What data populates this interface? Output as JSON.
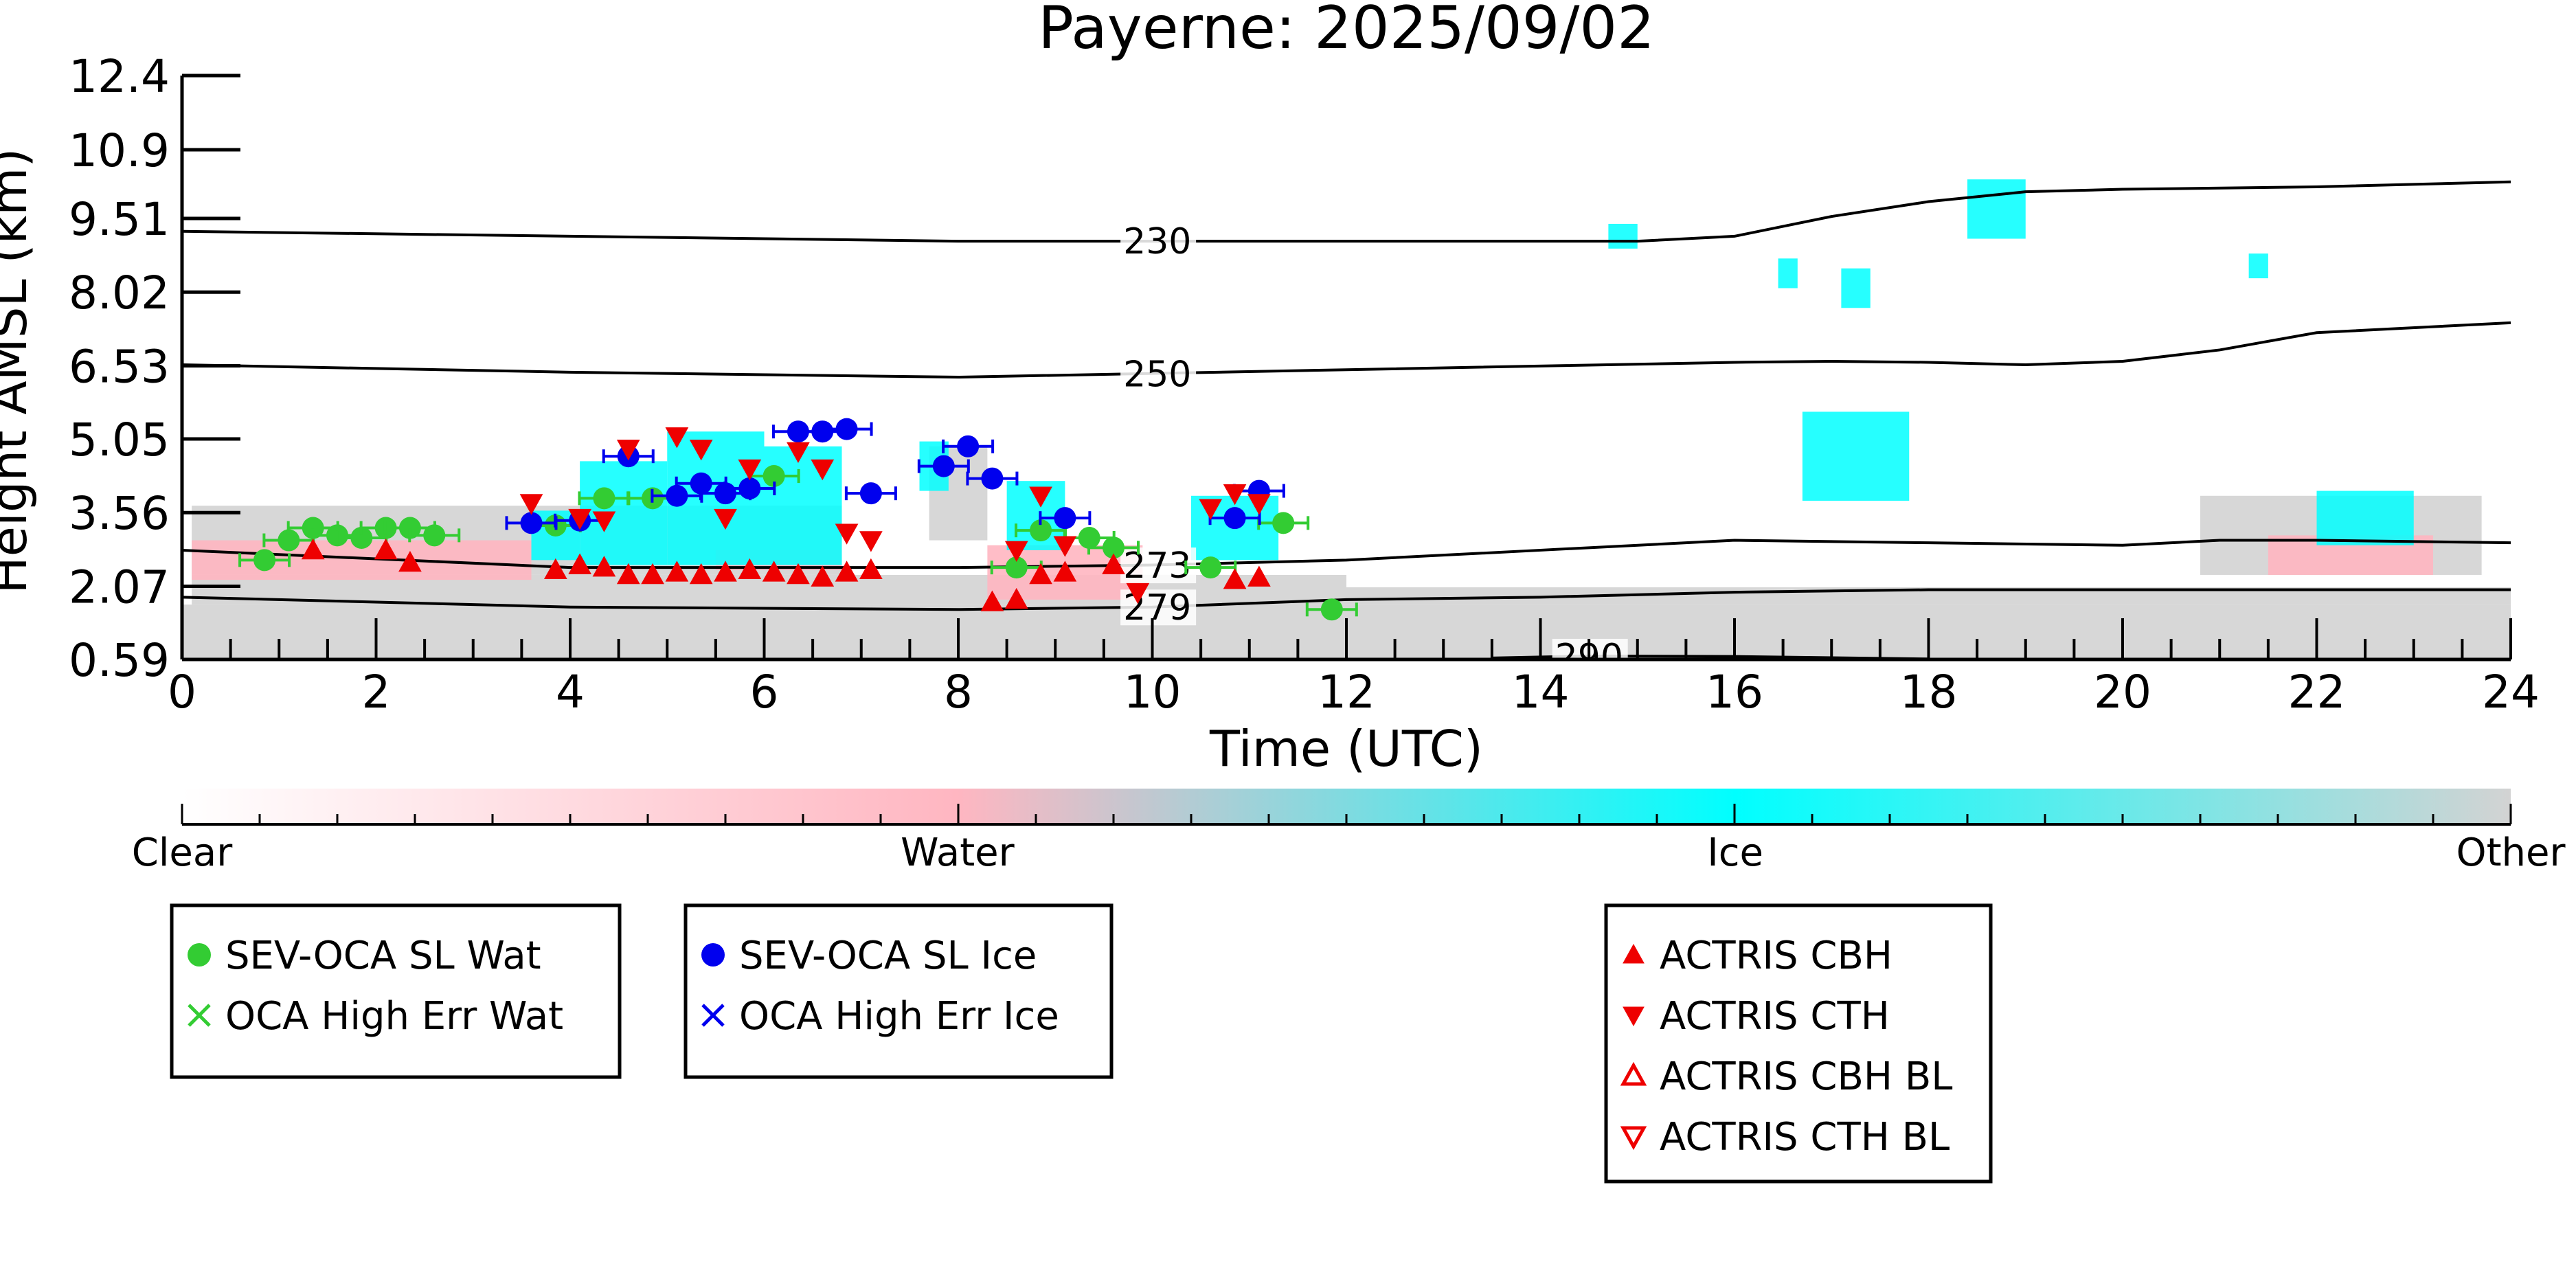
{
  "chart_data": {
    "type": "scatter",
    "title": "Payerne: 2025/09/02",
    "xlabel": "Time (UTC)",
    "ylabel": "Height AMSL (km)",
    "xlim": [
      0,
      24
    ],
    "ylim": [
      0.59,
      12.4
    ],
    "x_ticks": [
      "0",
      "2",
      "4",
      "6",
      "8",
      "10",
      "12",
      "14",
      "16",
      "18",
      "20",
      "22",
      "24"
    ],
    "y_ticks": [
      "12.4",
      "10.9",
      "9.51",
      "8.02",
      "6.53",
      "5.05",
      "3.56",
      "2.07",
      "0.59"
    ],
    "y_tick_values": [
      12.4,
      10.9,
      9.51,
      8.02,
      6.53,
      5.05,
      3.56,
      2.07,
      0.59
    ],
    "colorbar": {
      "labels": [
        "Clear",
        "Water",
        "Ice",
        "Other"
      ],
      "colors": [
        "#ffffff",
        "#ffb6c1",
        "#00ffff",
        "#d3d3d3"
      ]
    },
    "temperature_contours": [
      {
        "label": "230",
        "label_x": 9.7,
        "x": [
          0,
          4,
          8,
          12,
          15,
          16,
          17,
          18,
          19,
          20,
          22,
          24
        ],
        "y": [
          9.25,
          9.15,
          9.05,
          9.05,
          9.05,
          9.15,
          9.55,
          9.85,
          10.05,
          10.1,
          10.15,
          10.25
        ]
      },
      {
        "label": "250",
        "label_x": 9.7,
        "x": [
          0,
          4,
          8,
          12,
          16,
          17,
          18,
          19,
          20,
          21,
          22,
          24
        ],
        "y": [
          6.55,
          6.4,
          6.3,
          6.45,
          6.6,
          6.62,
          6.6,
          6.55,
          6.62,
          6.85,
          7.2,
          7.4
        ]
      },
      {
        "label": "273",
        "label_x": 9.7,
        "x": [
          0,
          4,
          8,
          10,
          12,
          14,
          16,
          18,
          20,
          21,
          22,
          24
        ],
        "y": [
          2.8,
          2.45,
          2.45,
          2.5,
          2.6,
          2.8,
          3.0,
          2.95,
          2.9,
          3.0,
          3.0,
          2.95
        ]
      },
      {
        "label": "279",
        "label_x": 9.7,
        "x": [
          0,
          4,
          8,
          10,
          12,
          14,
          16,
          18,
          20,
          22,
          24
        ],
        "y": [
          1.85,
          1.65,
          1.6,
          1.65,
          1.8,
          1.85,
          1.95,
          2.0,
          2.0,
          2.0,
          2.0
        ]
      },
      {
        "label": "290",
        "label_x": 14.15,
        "x": [
          13.5,
          14.5,
          16,
          18
        ],
        "y": [
          0.62,
          0.66,
          0.65,
          0.6
        ]
      }
    ],
    "series": [
      {
        "name": "SEV-OCA SL Wat",
        "marker": "circle",
        "color": "#33cc33",
        "x": [
          0.85,
          1.1,
          1.35,
          1.6,
          1.85,
          2.1,
          2.35,
          2.6,
          3.85,
          4.35,
          4.85,
          5.85,
          6.1,
          8.6,
          8.85,
          9.35,
          9.6,
          10.6,
          11.35,
          11.85
        ],
        "y": [
          2.6,
          3.0,
          3.25,
          3.1,
          3.05,
          3.25,
          3.25,
          3.1,
          3.3,
          3.85,
          3.85,
          4.05,
          4.3,
          2.45,
          3.2,
          3.05,
          2.85,
          2.45,
          3.35,
          1.6
        ]
      },
      {
        "name": "OCA High Err Wat",
        "marker": "x",
        "color": "#33cc33",
        "x": [],
        "y": []
      },
      {
        "name": "SEV-OCA SL Ice",
        "marker": "circle",
        "color": "#0000ee",
        "x": [
          3.6,
          4.1,
          4.6,
          5.1,
          5.35,
          5.6,
          5.85,
          6.35,
          6.6,
          6.85,
          7.1,
          7.85,
          8.1,
          8.35,
          9.1,
          10.85,
          11.1
        ],
        "y": [
          3.35,
          3.4,
          4.7,
          3.9,
          4.15,
          3.95,
          4.05,
          5.2,
          5.2,
          5.25,
          3.95,
          4.5,
          4.9,
          4.25,
          3.45,
          3.45,
          4.0
        ]
      },
      {
        "name": "OCA High Err Ice",
        "marker": "x",
        "color": "#0000ee",
        "x": [],
        "y": []
      },
      {
        "name": "ACTRIS CBH",
        "marker": "triangle-up",
        "color": "#ee0000",
        "x": [
          1.35,
          2.1,
          2.35,
          3.85,
          4.1,
          4.35,
          4.6,
          4.85,
          5.1,
          5.35,
          5.6,
          5.85,
          6.1,
          6.35,
          6.6,
          6.85,
          7.1,
          8.35,
          8.6,
          8.85,
          9.1,
          9.6,
          10.85,
          11.1
        ],
        "y": [
          2.8,
          2.8,
          2.55,
          2.4,
          2.5,
          2.45,
          2.3,
          2.3,
          2.35,
          2.3,
          2.35,
          2.4,
          2.35,
          2.3,
          2.25,
          2.35,
          2.4,
          1.75,
          1.8,
          2.3,
          2.35,
          2.5,
          2.2,
          2.25
        ]
      },
      {
        "name": "ACTRIS CTH",
        "marker": "triangle-down",
        "color": "#ee0000",
        "x": [
          3.6,
          4.1,
          4.35,
          4.6,
          5.1,
          5.35,
          5.6,
          5.85,
          6.35,
          6.6,
          6.85,
          7.1,
          8.6,
          8.85,
          9.1,
          9.85,
          10.6,
          10.85,
          11.1
        ],
        "y": [
          3.75,
          3.45,
          3.4,
          4.85,
          5.1,
          4.85,
          3.45,
          4.45,
          4.8,
          4.45,
          3.15,
          3.0,
          2.8,
          3.9,
          2.9,
          1.95,
          3.65,
          3.95,
          3.75
        ]
      },
      {
        "name": "ACTRIS CBH BL",
        "marker": "triangle-up-open",
        "color": "#ee0000",
        "x": [],
        "y": []
      },
      {
        "name": "ACTRIS CTH BL",
        "marker": "triangle-down-open",
        "color": "#ee0000",
        "x": [],
        "y": []
      }
    ],
    "cloud_regions": [
      {
        "class": "Other",
        "x0": 0,
        "x1": 24,
        "y0": 0.59,
        "y1": 1.7
      },
      {
        "class": "Other",
        "x0": 0.1,
        "x1": 12.0,
        "y0": 1.7,
        "y1": 2.3
      },
      {
        "class": "Other",
        "x0": 0.1,
        "x1": 6.8,
        "y0": 2.3,
        "y1": 3.7
      },
      {
        "class": "Other",
        "x0": 12.0,
        "x1": 24,
        "y0": 1.7,
        "y1": 2.05
      },
      {
        "class": "Other",
        "x0": 7.7,
        "x1": 8.3,
        "y0": 3.0,
        "y1": 4.9
      },
      {
        "class": "Other",
        "x0": 20.8,
        "x1": 23.7,
        "y0": 2.3,
        "y1": 3.9
      },
      {
        "class": "Water",
        "x0": 0.1,
        "x1": 3.6,
        "y0": 2.2,
        "y1": 3.0
      },
      {
        "class": "Water",
        "x0": 8.3,
        "x1": 9.9,
        "y0": 1.8,
        "y1": 2.9
      },
      {
        "class": "Water",
        "x0": 21.5,
        "x1": 23.2,
        "y0": 2.3,
        "y1": 3.1
      },
      {
        "class": "Water",
        "x0": 5.5,
        "x1": 6.8,
        "y0": 2.4,
        "y1": 2.8
      },
      {
        "class": "Ice",
        "x0": 4.1,
        "x1": 5.0,
        "y0": 2.5,
        "y1": 4.6
      },
      {
        "class": "Ice",
        "x0": 5.0,
        "x1": 6.0,
        "y0": 2.5,
        "y1": 5.2
      },
      {
        "class": "Ice",
        "x0": 6.0,
        "x1": 6.8,
        "y0": 2.5,
        "y1": 4.9
      },
      {
        "class": "Ice",
        "x0": 3.6,
        "x1": 4.1,
        "y0": 2.6,
        "y1": 3.6
      },
      {
        "class": "Ice",
        "x0": 7.6,
        "x1": 7.9,
        "y0": 4.0,
        "y1": 5.0
      },
      {
        "class": "Ice",
        "x0": 8.5,
        "x1": 9.1,
        "y0": 2.8,
        "y1": 4.2
      },
      {
        "class": "Ice",
        "x0": 10.4,
        "x1": 11.3,
        "y0": 2.6,
        "y1": 3.9
      },
      {
        "class": "Ice",
        "x0": 16.7,
        "x1": 17.8,
        "y0": 3.8,
        "y1": 5.6
      },
      {
        "class": "Ice",
        "x0": 22.0,
        "x1": 23.0,
        "y0": 2.9,
        "y1": 4.0
      },
      {
        "class": "Ice",
        "x0": 18.4,
        "x1": 19.0,
        "y0": 9.1,
        "y1": 10.3
      },
      {
        "class": "Ice",
        "x0": 17.1,
        "x1": 17.4,
        "y0": 7.7,
        "y1": 8.5
      },
      {
        "class": "Ice",
        "x0": 16.45,
        "x1": 16.65,
        "y0": 8.1,
        "y1": 8.7
      },
      {
        "class": "Ice",
        "x0": 14.7,
        "x1": 15.0,
        "y0": 8.9,
        "y1": 9.4
      },
      {
        "class": "Ice",
        "x0": 21.3,
        "x1": 21.5,
        "y0": 8.3,
        "y1": 8.8
      }
    ],
    "legend_boxes": [
      [
        "SEV-OCA SL Wat",
        "OCA High Err Wat"
      ],
      [
        "SEV-OCA SL Ice",
        "OCA High Err Ice"
      ],
      [
        "ACTRIS CBH",
        "ACTRIS CTH",
        "ACTRIS CBH BL",
        "ACTRIS CTH BL"
      ]
    ]
  }
}
